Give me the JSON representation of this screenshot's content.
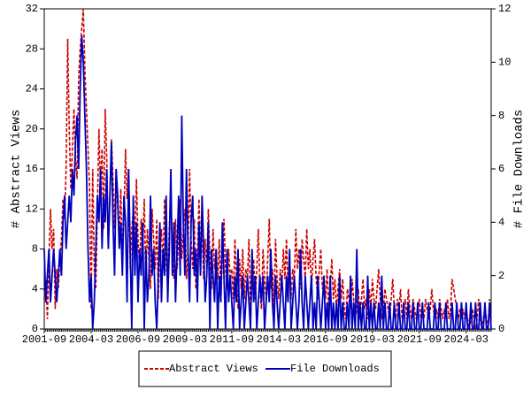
{
  "chart_data": {
    "type": "line",
    "y_label": "# Abstract Views",
    "y2_label": "# File Downloads",
    "categories": [
      "2001-09",
      null,
      null,
      null,
      null,
      null,
      null,
      null,
      null,
      null,
      null,
      null,
      null,
      null,
      null,
      null,
      null,
      null,
      null,
      null,
      null,
      null,
      null,
      null,
      null,
      null,
      null,
      null,
      null,
      null,
      "2004-03",
      null,
      null,
      null,
      null,
      null,
      null,
      null,
      null,
      null,
      null,
      null,
      null,
      null,
      null,
      null,
      null,
      null,
      null,
      null,
      null,
      null,
      null,
      null,
      null,
      null,
      null,
      null,
      null,
      null,
      "2006-09",
      null,
      null,
      null,
      null,
      null,
      null,
      null,
      null,
      null,
      null,
      null,
      null,
      null,
      null,
      null,
      null,
      null,
      null,
      null,
      null,
      null,
      null,
      null,
      null,
      null,
      null,
      null,
      null,
      null,
      "2009-03",
      null,
      null,
      null,
      null,
      null,
      null,
      null,
      null,
      null,
      null,
      null,
      null,
      null,
      null,
      null,
      null,
      null,
      null,
      null,
      null,
      null,
      null,
      null,
      null,
      null,
      null,
      null,
      null,
      null,
      "2011-09",
      null,
      null,
      null,
      null,
      null,
      null,
      null,
      null,
      null,
      null,
      null,
      null,
      null,
      null,
      null,
      null,
      null,
      null,
      null,
      null,
      null,
      null,
      null,
      null,
      null,
      null,
      null,
      null,
      null,
      "2014-03",
      null,
      null,
      null,
      null,
      null,
      null,
      null,
      null,
      null,
      null,
      null,
      null,
      null,
      null,
      null,
      null,
      null,
      null,
      null,
      null,
      null,
      null,
      null,
      null,
      null,
      null,
      null,
      null,
      null,
      "2016-09",
      null,
      null,
      null,
      null,
      null,
      null,
      null,
      null,
      null,
      null,
      null,
      null,
      null,
      null,
      null,
      null,
      null,
      null,
      null,
      null,
      null,
      null,
      null,
      null,
      null,
      null,
      null,
      null,
      null,
      "2019-03",
      null,
      null,
      null,
      null,
      null,
      null,
      null,
      null,
      null,
      null,
      null,
      null,
      null,
      null,
      null,
      null,
      null,
      null,
      null,
      null,
      null,
      null,
      null,
      null,
      null,
      null,
      null,
      null,
      null,
      "2021-09",
      null,
      null,
      null,
      null,
      null,
      null,
      null,
      null,
      null,
      null,
      null,
      null,
      null,
      null,
      null,
      null,
      null,
      null,
      null,
      null,
      null,
      null,
      null,
      null,
      null,
      null,
      null,
      null,
      null,
      "2024-03",
      null,
      null,
      null,
      null,
      null,
      null,
      null,
      null,
      null,
      null,
      null,
      null,
      null,
      null,
      null,
      null
    ],
    "series": [
      {
        "name": "Abstract Views",
        "color": "#cc0000",
        "dash": true,
        "values": [
          3,
          5,
          1,
          7,
          12,
          8,
          10,
          2,
          6,
          4,
          7,
          9,
          13,
          11,
          16,
          29,
          20,
          14,
          18,
          22,
          17,
          15,
          25,
          28,
          30,
          32,
          26,
          22,
          18,
          14,
          2,
          16,
          6,
          4,
          12,
          20,
          14,
          18,
          10,
          22,
          17,
          8,
          13,
          19,
          15,
          10,
          16,
          12,
          9,
          14,
          7,
          11,
          18,
          13,
          16,
          6,
          10,
          12,
          8,
          15,
          9,
          6,
          11,
          8,
          13,
          5,
          10,
          7,
          4,
          12,
          9,
          6,
          11,
          3,
          8,
          10,
          6,
          13,
          7,
          4,
          10,
          14,
          8,
          5,
          11,
          6,
          9,
          13,
          7,
          10,
          12,
          5,
          8,
          16,
          9,
          6,
          11,
          4,
          7,
          13,
          8,
          10,
          5,
          9,
          6,
          12,
          7,
          4,
          10,
          6,
          8,
          5,
          9,
          3,
          7,
          11,
          6,
          4,
          8,
          5,
          6,
          3,
          9,
          5,
          2,
          7,
          4,
          8,
          3,
          6,
          5,
          9,
          2,
          4,
          7,
          3,
          6,
          10,
          4,
          2,
          8,
          5,
          3,
          7,
          11,
          4,
          6,
          2,
          9,
          5,
          3,
          6,
          4,
          8,
          5,
          9,
          4,
          7,
          3,
          6,
          5,
          10,
          6,
          8,
          4,
          9,
          7,
          5,
          10,
          6,
          8,
          4,
          7,
          9,
          5,
          3,
          6,
          8,
          4,
          5,
          3,
          6,
          2,
          4,
          7,
          3,
          5,
          2,
          4,
          6,
          3,
          5,
          2,
          1,
          4,
          3,
          2,
          5,
          3,
          1,
          2,
          4,
          1,
          3,
          5,
          2,
          3,
          1,
          4,
          2,
          5,
          3,
          2,
          4,
          6,
          3,
          1,
          2,
          4,
          3,
          2,
          1,
          3,
          5,
          2,
          1,
          3,
          2,
          4,
          1,
          2,
          3,
          1,
          4,
          2,
          1,
          3,
          2,
          1,
          2,
          3,
          1,
          2,
          1,
          3,
          2,
          1,
          2,
          4,
          2,
          1,
          2,
          1,
          3,
          2,
          1,
          2,
          1,
          3,
          1,
          2,
          5,
          4,
          3,
          2,
          1,
          2,
          1,
          2,
          1,
          2,
          1,
          0,
          1,
          2,
          1,
          0,
          1,
          3,
          1,
          0,
          1,
          2,
          1,
          0,
          3,
          1
        ]
      },
      {
        "name": "File Downloads",
        "color": "#0000bb",
        "axis": "y2",
        "values": [
          3,
          1,
          2,
          3,
          1,
          2,
          3,
          2,
          1,
          2,
          3,
          2,
          4,
          5,
          3,
          4,
          5,
          4,
          6,
          5,
          7,
          8,
          6,
          9,
          11,
          10,
          8,
          6,
          3,
          1,
          2,
          0,
          1,
          3,
          5,
          4,
          6,
          3,
          5,
          4,
          6,
          3,
          5,
          7,
          4,
          2,
          6,
          5,
          3,
          4,
          2,
          5,
          4,
          1,
          6,
          3,
          0,
          5,
          2,
          4,
          1,
          3,
          2,
          4,
          0,
          3,
          1,
          2,
          5,
          2,
          3,
          1,
          0,
          2,
          4,
          1,
          3,
          2,
          5,
          1,
          3,
          6,
          2,
          4,
          1,
          3,
          5,
          2,
          8,
          4,
          2,
          6,
          3,
          1,
          4,
          5,
          2,
          3,
          1,
          4,
          2,
          5,
          3,
          1,
          2,
          4,
          0,
          3,
          2,
          1,
          3,
          0,
          2,
          1,
          4,
          2,
          0,
          3,
          1,
          2,
          1,
          0,
          2,
          1,
          3,
          0,
          1,
          2,
          0,
          1,
          2,
          1,
          0,
          3,
          1,
          2,
          0,
          1,
          2,
          1,
          2,
          0,
          1,
          2,
          1,
          3,
          1,
          0,
          2,
          1,
          0,
          1,
          2,
          1,
          0,
          2,
          1,
          3,
          0,
          1,
          2,
          1,
          0,
          1,
          3,
          1,
          0,
          2,
          1,
          0,
          1,
          2,
          0,
          1,
          0,
          2,
          1,
          0,
          1,
          2,
          0,
          1,
          0,
          2,
          0,
          1,
          0,
          1,
          0,
          2,
          0,
          1,
          0,
          0,
          1,
          0,
          2,
          0,
          1,
          0,
          3,
          0,
          1,
          0,
          1,
          0,
          0,
          2,
          0,
          1,
          0,
          1,
          0,
          0,
          1,
          0,
          2,
          0,
          1,
          0,
          0,
          1,
          0,
          0,
          1,
          0,
          0,
          1,
          0,
          0,
          1,
          0,
          0,
          1,
          0,
          0,
          1,
          0,
          0,
          1,
          0,
          0,
          1,
          0,
          0,
          0,
          1,
          0,
          0,
          0,
          1,
          0,
          0,
          1,
          0,
          0,
          0,
          1,
          0,
          0,
          0,
          1,
          0,
          0,
          1,
          0,
          0,
          1,
          0,
          0,
          1,
          0,
          0,
          1,
          0,
          0,
          1,
          0,
          0,
          1,
          0,
          0,
          1,
          0,
          0,
          1,
          0
        ]
      }
    ],
    "ylim": [
      0,
      32
    ],
    "yticks": [
      0,
      4,
      8,
      12,
      16,
      20,
      24,
      28,
      32
    ],
    "y2lim": [
      0,
      12
    ],
    "y2ticks": [
      0,
      2,
      4,
      6,
      8,
      10,
      12
    ]
  }
}
